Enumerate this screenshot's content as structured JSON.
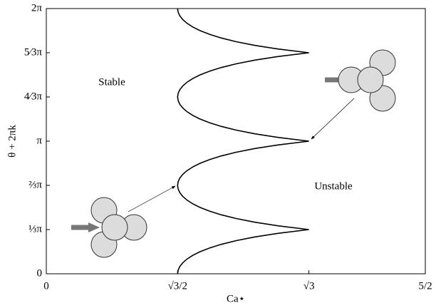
{
  "chart_data": {
    "type": "line",
    "xlabel": "Ca⋆",
    "ylabel": "θ + 2πk",
    "annotations": [
      "Stable",
      "Unstable"
    ],
    "xlim": [
      0,
      2.5
    ],
    "ylim": [
      0,
      6.2832
    ],
    "xticks": [
      0,
      {
        "value": 0.866,
        "label": "√3/2"
      },
      {
        "value": 1.7321,
        "label": "√3"
      },
      {
        "value": 2.5,
        "label": "5/2"
      }
    ],
    "yticks": [
      0,
      {
        "value": 1.0472,
        "label": "⅓π"
      },
      {
        "value": 2.0944,
        "label": "⅔π"
      },
      {
        "value": 3.1416,
        "label": "π"
      },
      {
        "value": 4.1888,
        "label": "4⁄3π"
      },
      {
        "value": 5.236,
        "label": "5⁄3π"
      },
      {
        "value": 6.2832,
        "label": "2π"
      }
    ],
    "series": [
      {
        "color": "#000000",
        "x": [
          0.866,
          0.8698,
          0.881,
          0.9003,
          0.9282,
          0.9658,
          1.0146,
          1.0766,
          1.1547,
          1.2527,
          1.376,
          1.5321,
          1.7321,
          1.5321,
          1.376,
          1.2527,
          1.1547,
          1.0766,
          1.0146,
          0.9658,
          0.9282,
          0.9003,
          0.881,
          0.8698,
          0.866,
          0.8698,
          0.881,
          0.9003,
          0.9282,
          0.9658,
          1.0146,
          1.0766,
          1.1547,
          1.2527,
          1.376,
          1.5321,
          1.7321,
          1.5321,
          1.376,
          1.2527,
          1.1547,
          1.0766,
          1.0146,
          0.9658,
          0.9282,
          0.9003,
          0.881,
          0.8698,
          0.866,
          0.8698,
          0.881,
          0.9003,
          0.9282,
          0.9658,
          1.0146,
          1.0766,
          1.1547,
          1.2527,
          1.376,
          1.5321,
          1.7321,
          1.5321,
          1.376,
          1.2527,
          1.1547,
          1.0766,
          1.0146,
          0.9658,
          0.9282,
          0.9003,
          0.881,
          0.8698,
          0.866
        ],
        "values": [
          0,
          0.0873,
          0.1745,
          0.2618,
          0.3491,
          0.4363,
          0.5236,
          0.6109,
          0.6981,
          0.7854,
          0.8727,
          0.9599,
          1.0472,
          1.1345,
          1.2217,
          1.309,
          1.3963,
          1.4835,
          1.5708,
          1.6581,
          1.7453,
          1.8326,
          1.9199,
          2.0071,
          2.0944,
          2.1817,
          2.2689,
          2.3562,
          2.4435,
          2.5307,
          2.618,
          2.7053,
          2.7925,
          2.8798,
          2.9671,
          3.0543,
          3.1416,
          3.2289,
          3.3161,
          3.4034,
          3.4907,
          3.5779,
          3.6652,
          3.7525,
          3.8397,
          3.927,
          4.0143,
          4.1015,
          4.1888,
          4.2761,
          4.3633,
          4.4506,
          4.5379,
          4.6251,
          4.7124,
          4.7997,
          4.8869,
          4.9742,
          5.0615,
          5.1487,
          5.236,
          5.3233,
          5.4105,
          5.4978,
          5.5851,
          5.6723,
          5.7596,
          5.8469,
          5.9341,
          6.0214,
          6.1087,
          6.1959,
          6.2832
        ]
      }
    ]
  }
}
